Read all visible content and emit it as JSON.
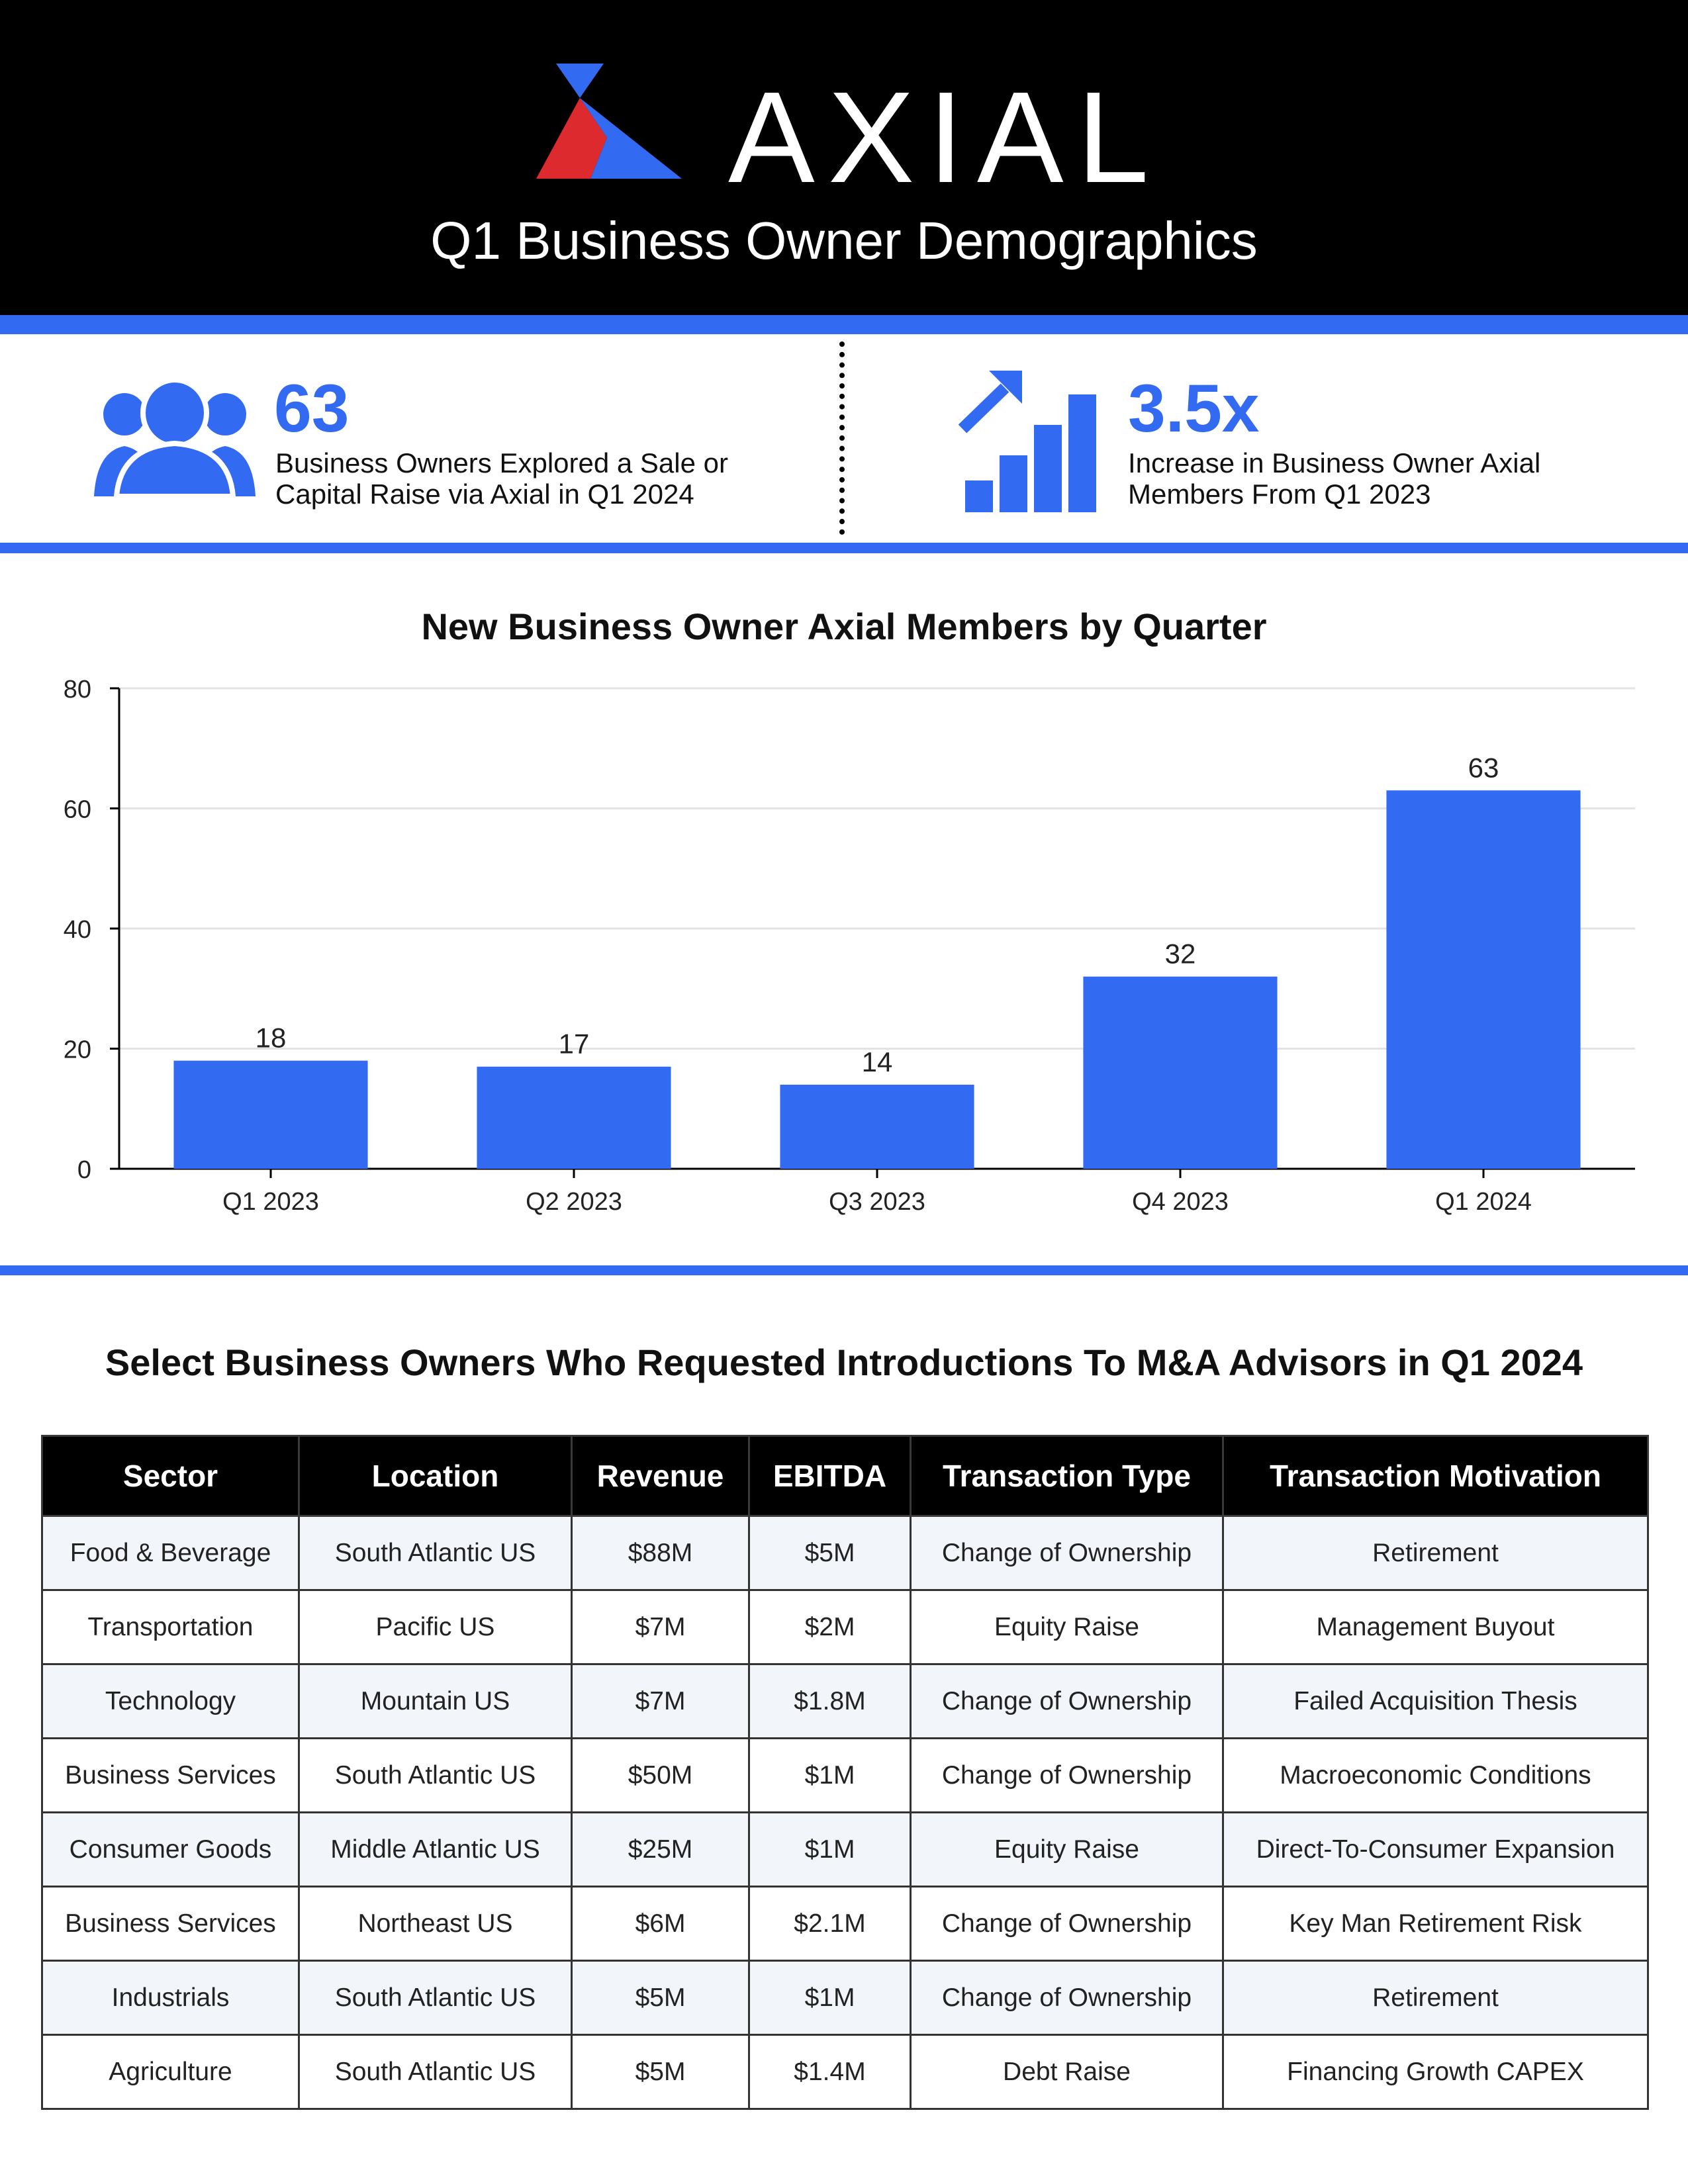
{
  "header": {
    "brand": "AXIAL",
    "subtitle": "Q1 Business Owner Demographics"
  },
  "stats": [
    {
      "icon": "users-group-icon",
      "value": "63",
      "description": "Business Owners Explored a Sale or Capital Raise via Axial in Q1 2024"
    },
    {
      "icon": "growth-chart-icon",
      "value": "3.5x",
      "description": "Increase in Business Owner Axial Members From Q1 2023"
    }
  ],
  "colors": {
    "accent": "#336af2",
    "logo_red": "#dc2a2f",
    "header_bg": "#000000"
  },
  "chart_data": {
    "type": "bar",
    "title": "New Business Owner Axial Members by Quarter",
    "categories": [
      "Q1 2023",
      "Q2 2023",
      "Q3 2023",
      "Q4 2023",
      "Q1 2024"
    ],
    "values": [
      18,
      17,
      14,
      32,
      63
    ],
    "ylim": [
      0,
      80
    ],
    "yticks": [
      0,
      20,
      40,
      60,
      80
    ],
    "grid": true,
    "xlabel": "",
    "ylabel": "",
    "bar_color": "#336af2"
  },
  "table": {
    "title": "Select Business Owners Who Requested Introductions To M&A Advisors in Q1 2024",
    "columns": [
      "Sector",
      "Location",
      "Revenue",
      "EBITDA",
      "Transaction Type",
      "Transaction Motivation"
    ],
    "rows": [
      [
        "Food & Beverage",
        "South Atlantic US",
        "$88M",
        "$5M",
        "Change of Ownership",
        "Retirement"
      ],
      [
        "Transportation",
        "Pacific US",
        "$7M",
        "$2M",
        "Equity Raise",
        "Management Buyout"
      ],
      [
        "Technology",
        "Mountain US",
        "$7M",
        "$1.8M",
        "Change of Ownership",
        "Failed Acquisition Thesis"
      ],
      [
        "Business Services",
        "South Atlantic US",
        "$50M",
        "$1M",
        "Change of Ownership",
        "Macroeconomic Conditions"
      ],
      [
        "Consumer Goods",
        "Middle Atlantic US",
        "$25M",
        "$1M",
        "Equity Raise",
        "Direct-To-Consumer Expansion"
      ],
      [
        "Business Services",
        "Northeast US",
        "$6M",
        "$2.1M",
        "Change of Ownership",
        "Key Man Retirement Risk"
      ],
      [
        "Industrials",
        "South Atlantic US",
        "$5M",
        "$1M",
        "Change of Ownership",
        "Retirement"
      ],
      [
        "Agriculture",
        "South Atlantic US",
        "$5M",
        "$1.4M",
        "Debt Raise",
        "Financing Growth CAPEX"
      ]
    ]
  }
}
